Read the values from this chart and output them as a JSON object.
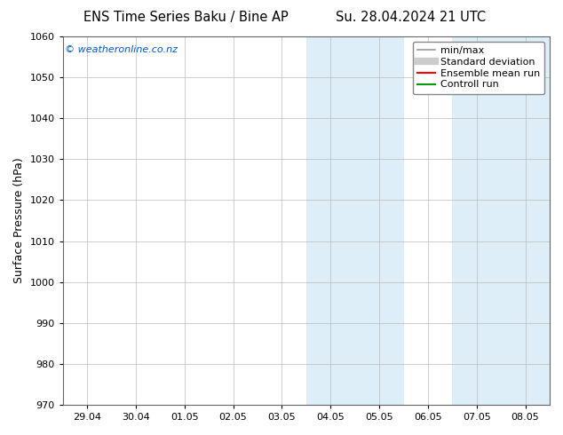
{
  "title_left": "ENS Time Series Baku / Bine AP",
  "title_right": "Su. 28.04.2024 21 UTC",
  "ylabel": "Surface Pressure (hPa)",
  "ylim": [
    970,
    1060
  ],
  "yticks": [
    970,
    980,
    990,
    1000,
    1010,
    1020,
    1030,
    1040,
    1050,
    1060
  ],
  "x_labels": [
    "29.04",
    "30.04",
    "01.05",
    "02.05",
    "03.05",
    "04.05",
    "05.05",
    "06.05",
    "07.05",
    "08.05"
  ],
  "x_positions": [
    0,
    1,
    2,
    3,
    4,
    5,
    6,
    7,
    8,
    9
  ],
  "xlim": [
    -0.5,
    9.5
  ],
  "shaded_regions": [
    {
      "xmin": 4.5,
      "xmax": 5.5,
      "color": "#ddeef8",
      "alpha": 1.0
    },
    {
      "xmin": 5.5,
      "xmax": 6.5,
      "color": "#ddeef8",
      "alpha": 1.0
    },
    {
      "xmin": 7.5,
      "xmax": 8.5,
      "color": "#ddeef8",
      "alpha": 1.0
    },
    {
      "xmin": 8.5,
      "xmax": 9.5,
      "color": "#ddeef8",
      "alpha": 1.0
    }
  ],
  "legend_items": [
    {
      "label": "min/max",
      "color": "#999999",
      "lw": 1.2,
      "type": "line"
    },
    {
      "label": "Standard deviation",
      "color": "#cccccc",
      "lw": 6,
      "type": "line"
    },
    {
      "label": "Ensemble mean run",
      "color": "#ff0000",
      "lw": 1.5,
      "type": "line"
    },
    {
      "label": "Controll run",
      "color": "#009900",
      "lw": 1.5,
      "type": "line"
    }
  ],
  "watermark": "© weatheronline.co.nz",
  "watermark_color": "#0055cc",
  "bg_color": "#ffffff",
  "plot_bg_color": "#ffffff",
  "grid_color": "#bbbbbb",
  "title_fontsize": 10.5,
  "ylabel_fontsize": 9,
  "tick_fontsize": 8,
  "legend_fontsize": 8,
  "watermark_fontsize": 8
}
